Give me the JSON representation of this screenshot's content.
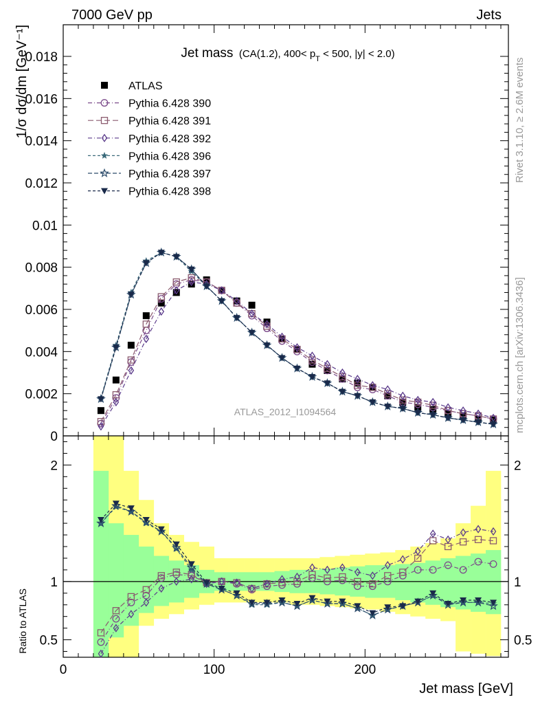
{
  "header": {
    "left": "7000 GeV pp",
    "right": "Jets"
  },
  "side_labels": {
    "rivet": "Rivet 3.1.10, ≥ 2.6M events",
    "mcplots": "mcplots.cern.ch [arXiv:1306.3436]"
  },
  "watermark": "ATLAS_2012_I1094564",
  "chart_data": [
    {
      "type": "scatter",
      "title_main": "Jet mass",
      "title_sub": "(CA(1.2), 400< p_T < 500, |y| < 2.0)",
      "ylabel": "1/σ dσ/dm [GeV⁻¹]",
      "xlim": [
        0,
        295
      ],
      "ylim": [
        0,
        0.0195
      ],
      "yticks": [
        0,
        0.002,
        0.004,
        0.006,
        0.008,
        0.01,
        0.012,
        0.014,
        0.016,
        0.018
      ],
      "ytick_labels": [
        "0",
        "0.002",
        "0.004",
        "0.006",
        "0.008",
        "0.01",
        "0.012",
        "0.014",
        "0.016",
        "0.018"
      ],
      "x": [
        25,
        35,
        45,
        55,
        65,
        75,
        85,
        95,
        105,
        115,
        125,
        135,
        145,
        155,
        165,
        175,
        185,
        195,
        205,
        215,
        225,
        235,
        245,
        255,
        265,
        275,
        285
      ],
      "series": [
        {
          "name": "ATLAS",
          "color": "#000000",
          "marker": "square-filled",
          "values": [
            0.0012,
            0.00265,
            0.0043,
            0.0057,
            0.0063,
            0.0068,
            0.0072,
            0.0074,
            0.0069,
            0.0064,
            0.0062,
            0.0054,
            0.0046,
            0.0041,
            0.0034,
            0.0031,
            0.0027,
            0.0025,
            0.0023,
            0.0019,
            0.0016,
            0.00135,
            0.00125,
            0.00105,
            0.00095,
            0.0008,
            0.00075
          ]
        },
        {
          "name": "Pythia 6.428 390",
          "color": "#7b4a8a",
          "marker": "circle-open",
          "values": [
            0.00058,
            0.0018,
            0.0035,
            0.005,
            0.0065,
            0.0072,
            0.0074,
            0.0073,
            0.0069,
            0.0063,
            0.0057,
            0.0051,
            0.0045,
            0.004,
            0.0035,
            0.0031,
            0.0027,
            0.0023,
            0.0022,
            0.0019,
            0.0016,
            0.0015,
            0.00135,
            0.0012,
            0.00105,
            0.00095,
            0.0008
          ]
        },
        {
          "name": "Pythia 6.428 391",
          "color": "#8a5a6e",
          "marker": "square-open",
          "values": [
            0.00068,
            0.00195,
            0.0036,
            0.0053,
            0.0066,
            0.0073,
            0.0075,
            0.0073,
            0.0069,
            0.0063,
            0.0058,
            0.0052,
            0.0046,
            0.0041,
            0.0036,
            0.0032,
            0.0028,
            0.0024,
            0.0023,
            0.002,
            0.0017,
            0.0016,
            0.00145,
            0.0012,
            0.00105,
            0.00095,
            0.0008
          ]
        },
        {
          "name": "Pythia 6.428 392",
          "color": "#5a3a8a",
          "marker": "diamond-open",
          "values": [
            0.00045,
            0.0016,
            0.0031,
            0.0046,
            0.0059,
            0.0069,
            0.0073,
            0.0072,
            0.0069,
            0.0064,
            0.0058,
            0.0053,
            0.0047,
            0.0042,
            0.0038,
            0.0034,
            0.003,
            0.0027,
            0.0024,
            0.0022,
            0.0019,
            0.0017,
            0.0016,
            0.00135,
            0.0012,
            0.00105,
            0.00085
          ]
        },
        {
          "name": "Pythia 6.428 396",
          "color": "#3a6a7a",
          "marker": "star-filled",
          "values": [
            0.0018,
            0.0043,
            0.0068,
            0.0083,
            0.0087,
            0.0085,
            0.0078,
            0.0071,
            0.0064,
            0.0056,
            0.0049,
            0.0043,
            0.0037,
            0.0032,
            0.0028,
            0.0025,
            0.0021,
            0.0019,
            0.0016,
            0.0014,
            0.0013,
            0.0011,
            0.001,
            0.00085,
            0.00075,
            0.00065,
            0.00055
          ]
        },
        {
          "name": "Pythia 6.428 397",
          "color": "#2a4a6a",
          "marker": "star-open",
          "values": [
            0.00175,
            0.0042,
            0.0067,
            0.0082,
            0.0087,
            0.0085,
            0.0079,
            0.0071,
            0.0064,
            0.0056,
            0.0049,
            0.0043,
            0.0037,
            0.0032,
            0.0028,
            0.0025,
            0.0021,
            0.0019,
            0.0016,
            0.0014,
            0.0013,
            0.0011,
            0.001,
            0.00085,
            0.00075,
            0.00065,
            0.00055
          ]
        },
        {
          "name": "Pythia 6.428 398",
          "color": "#1a2a4a",
          "marker": "triangle-down-filled",
          "values": [
            0.00175,
            0.0042,
            0.0067,
            0.0082,
            0.0087,
            0.0085,
            0.0079,
            0.0071,
            0.0064,
            0.0056,
            0.0049,
            0.0043,
            0.0037,
            0.0032,
            0.0028,
            0.0025,
            0.0021,
            0.0019,
            0.0016,
            0.0014,
            0.0013,
            0.0011,
            0.001,
            0.00085,
            0.00075,
            0.00065,
            0.00055
          ]
        }
      ]
    },
    {
      "type": "line",
      "ylabel": "Ratio to ATLAS",
      "xlabel": "Jet mass [GeV]",
      "xlim": [
        0,
        295
      ],
      "ylim": [
        0.35,
        2.25
      ],
      "xticks": [
        0,
        100,
        200
      ],
      "xtick_labels": [
        "0",
        "100",
        "200"
      ],
      "yticks": [
        0.5,
        1,
        2
      ],
      "ytick_labels": [
        "0.5",
        "1",
        "2"
      ],
      "bin_edges": [
        20,
        30,
        40,
        50,
        60,
        70,
        80,
        90,
        100,
        110,
        120,
        130,
        140,
        150,
        160,
        170,
        180,
        190,
        200,
        210,
        220,
        230,
        240,
        250,
        260,
        270,
        280,
        290
      ],
      "band_inner": {
        "color": "#99ff99",
        "low": [
          0.35,
          0.52,
          0.62,
          0.73,
          0.79,
          0.82,
          0.86,
          0.9,
          0.92,
          0.92,
          0.92,
          0.92,
          0.91,
          0.9,
          0.9,
          0.89,
          0.88,
          0.87,
          0.86,
          0.86,
          0.84,
          0.82,
          0.8,
          0.78,
          0.76,
          0.74,
          0.72
        ],
        "high": [
          1.95,
          1.5,
          1.4,
          1.3,
          1.22,
          1.18,
          1.14,
          1.1,
          1.08,
          1.08,
          1.08,
          1.08,
          1.09,
          1.1,
          1.1,
          1.11,
          1.12,
          1.13,
          1.14,
          1.14,
          1.15,
          1.16,
          1.18,
          1.2,
          1.22,
          1.24,
          1.27
        ]
      },
      "band_outer": {
        "color": "#ffff80",
        "low": [
          0.35,
          0.35,
          0.35,
          0.62,
          0.68,
          0.72,
          0.76,
          0.8,
          0.82,
          0.82,
          0.82,
          0.82,
          0.82,
          0.8,
          0.8,
          0.79,
          0.78,
          0.77,
          0.76,
          0.74,
          0.72,
          0.7,
          0.68,
          0.66,
          0.4,
          0.38,
          0.36
        ],
        "high": [
          2.25,
          2.25,
          1.95,
          1.7,
          1.5,
          1.4,
          1.34,
          1.3,
          1.2,
          1.2,
          1.2,
          1.2,
          1.2,
          1.2,
          1.2,
          1.21,
          1.22,
          1.23,
          1.24,
          1.25,
          1.27,
          1.3,
          1.33,
          1.37,
          1.5,
          1.65,
          1.95
        ]
      },
      "x": [
        25,
        35,
        45,
        55,
        65,
        75,
        85,
        95,
        105,
        115,
        125,
        135,
        145,
        155,
        165,
        175,
        185,
        195,
        205,
        215,
        225,
        235,
        245,
        255,
        265,
        275,
        285
      ],
      "series": [
        {
          "name": "Pythia 6.428 390",
          "color": "#7b4a8a",
          "marker": "circle-open",
          "values": [
            0.48,
            0.68,
            0.82,
            0.88,
            1.03,
            1.06,
            1.05,
            0.99,
            1.0,
            0.98,
            0.93,
            0.96,
            0.97,
            0.98,
            1.03,
            1.0,
            1.01,
            0.96,
            0.96,
            1.0,
            1.05,
            1.1,
            1.1,
            1.14,
            1.1,
            1.17,
            1.15
          ]
        },
        {
          "name": "Pythia 6.428 391",
          "color": "#8a5a6e",
          "marker": "square-open",
          "values": [
            0.56,
            0.75,
            0.87,
            0.93,
            1.05,
            1.08,
            1.06,
            0.99,
            1.0,
            0.99,
            0.94,
            0.98,
            0.99,
            1.0,
            1.06,
            1.03,
            1.04,
            1.0,
            0.98,
            1.05,
            1.08,
            1.2,
            1.35,
            1.3,
            1.34,
            1.36,
            1.35
          ]
        },
        {
          "name": "Pythia 6.428 392",
          "color": "#5a3a8a",
          "marker": "diamond-open",
          "values": [
            0.38,
            0.6,
            0.72,
            0.82,
            0.94,
            1.0,
            1.02,
            0.98,
            1.0,
            0.99,
            0.94,
            0.98,
            1.02,
            1.04,
            1.12,
            1.1,
            1.12,
            1.08,
            1.05,
            1.14,
            1.19,
            1.26,
            1.41,
            1.36,
            1.42,
            1.45,
            1.43
          ]
        },
        {
          "name": "Pythia 6.428 396",
          "color": "#3a6a7a",
          "marker": "star-filled",
          "values": [
            1.5,
            1.64,
            1.6,
            1.5,
            1.43,
            1.28,
            1.1,
            0.98,
            0.93,
            0.88,
            0.8,
            0.8,
            0.82,
            0.79,
            0.84,
            0.81,
            0.81,
            0.77,
            0.71,
            0.76,
            0.79,
            0.82,
            0.88,
            0.81,
            0.82,
            0.82,
            0.81
          ]
        },
        {
          "name": "Pythia 6.428 397",
          "color": "#2a4a6a",
          "marker": "star-open",
          "values": [
            1.5,
            1.65,
            1.6,
            1.51,
            1.43,
            1.29,
            1.12,
            0.98,
            0.93,
            0.88,
            0.81,
            0.81,
            0.82,
            0.79,
            0.84,
            0.81,
            0.81,
            0.77,
            0.71,
            0.76,
            0.79,
            0.82,
            0.88,
            0.8,
            0.82,
            0.82,
            0.79
          ]
        },
        {
          "name": "Pythia 6.428 398",
          "color": "#1a2a4a",
          "marker": "triangle-down-filled",
          "values": [
            1.53,
            1.67,
            1.63,
            1.53,
            1.45,
            1.32,
            1.15,
            0.99,
            0.94,
            0.9,
            0.82,
            0.82,
            0.84,
            0.81,
            0.86,
            0.83,
            0.83,
            0.79,
            0.73,
            0.78,
            0.79,
            0.83,
            0.9,
            0.81,
            0.84,
            0.84,
            0.82
          ]
        }
      ]
    }
  ]
}
